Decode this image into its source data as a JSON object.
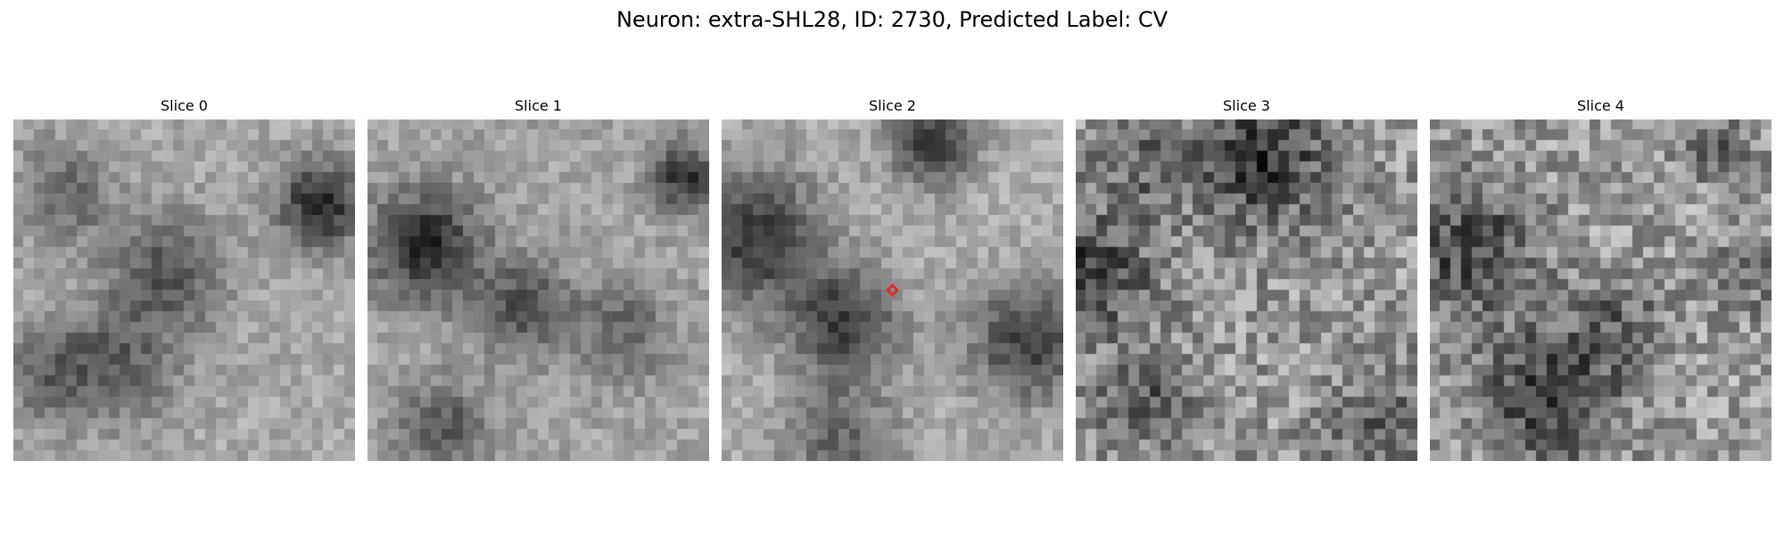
{
  "figure": {
    "title": "Neuron: extra-SHL28, ID: 2730, Predicted Label: CV"
  },
  "panels": [
    {
      "title": "Slice 0",
      "mean": 0.66,
      "blobs": [
        [
          0.9,
          0.25,
          0.09,
          0.5
        ],
        [
          0.45,
          0.45,
          0.12,
          0.32
        ],
        [
          0.3,
          0.72,
          0.12,
          0.28
        ],
        [
          0.15,
          0.22,
          0.1,
          0.25
        ],
        [
          0.1,
          0.75,
          0.1,
          0.22
        ]
      ]
    },
    {
      "title": "Slice 1",
      "mean": 0.64,
      "blobs": [
        [
          0.17,
          0.37,
          0.11,
          0.5
        ],
        [
          0.45,
          0.55,
          0.1,
          0.32
        ],
        [
          0.93,
          0.17,
          0.07,
          0.45
        ],
        [
          0.22,
          0.9,
          0.09,
          0.3
        ],
        [
          0.75,
          0.62,
          0.1,
          0.25
        ]
      ]
    },
    {
      "title": "Slice 2",
      "mean": 0.68,
      "blobs": [
        [
          0.1,
          0.35,
          0.14,
          0.45
        ],
        [
          0.36,
          0.6,
          0.11,
          0.45
        ],
        [
          0.62,
          0.06,
          0.09,
          0.45
        ],
        [
          0.9,
          0.65,
          0.12,
          0.45
        ],
        [
          0.35,
          0.95,
          0.12,
          0.28
        ]
      ],
      "marker": {
        "x": 0.5,
        "y": 0.5,
        "color": "#e8221c"
      }
    },
    {
      "title": "Slice 3",
      "mean": 0.6,
      "blobs": [
        [
          0.05,
          0.45,
          0.12,
          0.38
        ],
        [
          0.55,
          0.12,
          0.14,
          0.38
        ],
        [
          0.2,
          0.82,
          0.09,
          0.25
        ],
        [
          0.9,
          0.9,
          0.12,
          0.2
        ],
        [
          0.2,
          0.12,
          0.1,
          0.2
        ]
      ]
    },
    {
      "title": "Slice 4",
      "mean": 0.62,
      "blobs": [
        [
          0.12,
          0.38,
          0.14,
          0.35
        ],
        [
          0.35,
          0.82,
          0.14,
          0.4
        ],
        [
          0.55,
          0.6,
          0.1,
          0.2
        ],
        [
          0.92,
          0.45,
          0.08,
          0.2
        ],
        [
          0.85,
          0.08,
          0.08,
          0.2
        ]
      ]
    }
  ]
}
